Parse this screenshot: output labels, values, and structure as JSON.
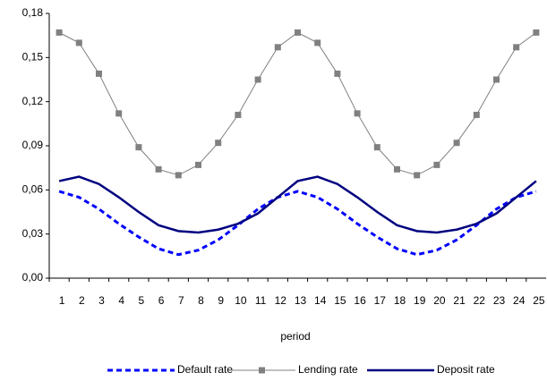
{
  "chart_data": {
    "type": "line",
    "x_label": "period",
    "categories": [
      "1",
      "2",
      "3",
      "4",
      "5",
      "6",
      "7",
      "8",
      "9",
      "10",
      "11",
      "12",
      "13",
      "14",
      "15",
      "16",
      "17",
      "18",
      "19",
      "20",
      "21",
      "22",
      "23",
      "24",
      "25"
    ],
    "ylim": [
      0,
      0.18
    ],
    "yticks": [
      {
        "value": 0,
        "label": "0,00"
      },
      {
        "value": 0.03,
        "label": "0,03"
      },
      {
        "value": 0.06,
        "label": "0,06"
      },
      {
        "value": 0.09,
        "label": "0,09"
      },
      {
        "value": 0.12,
        "label": "0,12"
      },
      {
        "value": 0.15,
        "label": "0,15"
      },
      {
        "value": 0.18,
        "label": "0,18"
      }
    ],
    "legend": "bottom",
    "series": [
      {
        "name": "Default rate",
        "color": "#0000ff",
        "style": "dashed",
        "marker": "none",
        "values": [
          0.059,
          0.055,
          0.047,
          0.037,
          0.028,
          0.02,
          0.016,
          0.019,
          0.026,
          0.036,
          0.047,
          0.055,
          0.059,
          0.055,
          0.047,
          0.037,
          0.028,
          0.02,
          0.016,
          0.019,
          0.026,
          0.036,
          0.047,
          0.055,
          0.059
        ]
      },
      {
        "name": "Lending rate",
        "color": "#808080",
        "style": "solid",
        "marker": "square",
        "values": [
          0.167,
          0.16,
          0.139,
          0.112,
          0.089,
          0.074,
          0.07,
          0.077,
          0.092,
          0.111,
          0.135,
          0.157,
          0.167,
          0.16,
          0.139,
          0.112,
          0.089,
          0.074,
          0.07,
          0.077,
          0.092,
          0.111,
          0.135,
          0.157,
          0.167
        ]
      },
      {
        "name": "Deposit rate",
        "color": "#000080",
        "style": "solid",
        "marker": "none",
        "values": [
          0.066,
          0.069,
          0.064,
          0.055,
          0.045,
          0.036,
          0.032,
          0.031,
          0.033,
          0.037,
          0.044,
          0.055,
          0.066,
          0.069,
          0.064,
          0.055,
          0.045,
          0.036,
          0.032,
          0.031,
          0.033,
          0.037,
          0.044,
          0.055,
          0.066
        ]
      }
    ]
  }
}
